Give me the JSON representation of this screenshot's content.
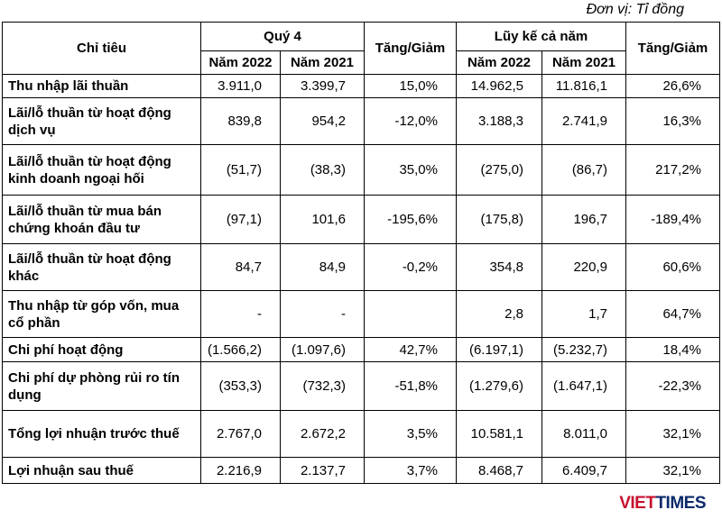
{
  "header": {
    "unit": "Đơn vị: Tỉ đồng",
    "indicator": "Chỉ tiêu",
    "quarter": "Quý 4",
    "quarter_change": "Tăng/Giảm",
    "cumulative": "Lũy kế cả năm",
    "cumulative_change": "Tăng/Giảm",
    "quarter_years": [
      "Năm 2022",
      "Năm 2021"
    ],
    "cumulative_years": [
      "Năm 2022",
      "Năm 2021"
    ]
  },
  "table": {
    "rows": [
      [
        "Thu nhập lãi thuần",
        "3.911,0",
        "3.399,7",
        "15,0%",
        "14.962,5",
        "11.816,1",
        "26,6%"
      ],
      [
        "Lãi/lỗ thuần từ hoạt động dịch vụ",
        "839,8",
        "954,2",
        "-12,0%",
        "3.188,3",
        "2.741,9",
        "16,3%"
      ],
      [
        "Lãi/lỗ thuần từ hoạt động kinh doanh ngoại hối",
        "(51,7)",
        "(38,3)",
        "35,0%",
        "(275,0)",
        "(86,7)",
        "217,2%"
      ],
      [
        "Lãi/lỗ thuần từ mua bán chứng khoán đầu tư",
        "(97,1)",
        "101,6",
        "-195,6%",
        "(175,8)",
        "196,7",
        "-189,4%"
      ],
      [
        "Lãi/lỗ thuần từ hoạt động khác",
        "84,7",
        "84,9",
        "-0,2%",
        "354,8",
        "220,9",
        "60,6%"
      ],
      [
        "Thu nhập từ góp vốn, mua cổ phần",
        "-",
        "-",
        null,
        "2,8",
        "1,7",
        "64,7%"
      ],
      [
        "Chi phí hoạt động",
        "(1.566,2)",
        "(1.097,6)",
        "42,7%",
        "(6.197,1)",
        "(5.232,7)",
        "18,4%"
      ],
      [
        "Chi phí dự phòng rủi ro tín dụng",
        "(353,3)",
        "(732,3)",
        "-51,8%",
        "(1.279,6)",
        "(1.647,1)",
        "-22,3%"
      ],
      [
        "Tổng lợi nhuận trước thuế",
        "2.767,0",
        "2.672,2",
        "3,5%",
        "10.581,1",
        "8.011,0",
        "32,1%"
      ],
      [
        "Lợi nhuận sau thuế",
        "2.216,9",
        "2.137,7",
        "3,7%",
        "8.468,7",
        "6.409,7",
        "32,1%"
      ]
    ]
  },
  "watermark": {
    "part1": "VIET",
    "part2": "TIMES"
  }
}
